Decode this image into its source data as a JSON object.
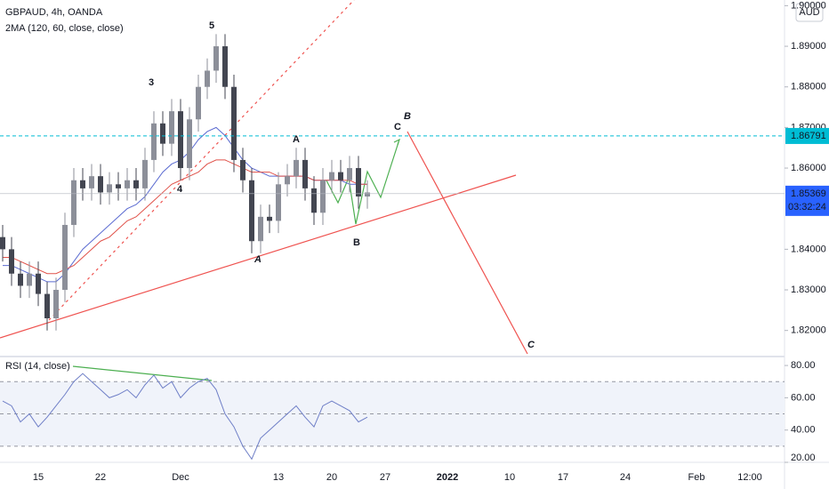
{
  "chart_data": {
    "type": "candlestick",
    "title": "GBPAUD, 4h, OANDA",
    "indicator": "2MA (120, 60, close, close)",
    "rsi_title": "RSI (14, close)",
    "currency": "AUD",
    "countdown": "03:32:24",
    "categories": [
      null,
      null,
      null,
      null,
      "15",
      null,
      null,
      null,
      null,
      null,
      null,
      "22",
      null,
      null,
      null,
      null,
      null,
      null,
      null,
      null,
      "Dec",
      null,
      null,
      null,
      null,
      null,
      null,
      null,
      null,
      null,
      null,
      "13",
      null,
      null,
      null,
      null,
      null,
      "20",
      null,
      null,
      null,
      null,
      null,
      "27",
      null,
      null,
      null,
      null,
      null,
      null,
      "2022",
      null,
      null,
      null,
      null,
      null,
      null,
      "10",
      null,
      null,
      null,
      null,
      null,
      "17",
      null,
      null,
      null,
      null,
      null,
      null,
      "24",
      null,
      null,
      null,
      null,
      null,
      null,
      null,
      "Feb",
      null,
      null,
      null,
      null,
      null,
      "12:00",
      null,
      null,
      null
    ],
    "open": [
      1.843,
      1.84,
      1.834,
      1.831,
      1.834,
      1.829,
      1.823,
      1.83,
      1.846,
      1.857,
      1.855,
      1.858,
      1.854,
      1.856,
      1.855,
      1.857,
      1.855,
      1.862,
      1.871,
      1.866,
      1.874,
      1.86,
      1.872,
      1.88,
      1.884,
      1.89,
      1.88,
      1.862,
      1.857,
      1.842,
      1.848,
      1.847,
      1.856,
      1.858,
      1.862,
      1.855,
      1.849,
      1.857,
      1.859,
      1.857,
      1.86,
      1.853,
      null,
      null,
      null,
      null,
      null,
      null,
      null,
      null,
      null,
      null,
      null,
      null,
      null,
      null,
      null,
      null,
      null,
      null,
      null,
      null,
      null,
      null,
      null,
      null,
      null,
      null,
      null,
      null,
      null,
      null,
      null,
      null,
      null,
      null,
      null,
      null,
      null,
      null,
      null,
      null,
      null,
      null,
      null,
      null,
      null,
      null
    ],
    "high": [
      1.846,
      1.843,
      1.837,
      1.837,
      1.837,
      1.832,
      1.833,
      1.849,
      1.86,
      1.86,
      1.861,
      1.861,
      1.859,
      1.859,
      1.86,
      1.86,
      1.865,
      1.874,
      1.874,
      1.877,
      1.877,
      1.875,
      1.883,
      1.887,
      1.893,
      1.893,
      1.883,
      1.865,
      1.86,
      1.851,
      1.851,
      1.859,
      1.861,
      1.865,
      1.865,
      1.858,
      1.86,
      1.862,
      1.862,
      1.863,
      1.863,
      1.857,
      null,
      null,
      null,
      null,
      null,
      null,
      null,
      null,
      null,
      null,
      null,
      null,
      null,
      null,
      null,
      null,
      null,
      null,
      null,
      null,
      null,
      null,
      null,
      null,
      null,
      null,
      null,
      null,
      null,
      null,
      null,
      null,
      null,
      null,
      null,
      null,
      null,
      null,
      null,
      null,
      null,
      null,
      null,
      null,
      null,
      null
    ],
    "low": [
      1.837,
      1.831,
      1.828,
      1.828,
      1.826,
      1.82,
      1.82,
      1.827,
      1.843,
      1.852,
      1.852,
      1.851,
      1.851,
      1.852,
      1.852,
      1.852,
      1.852,
      1.859,
      1.863,
      1.863,
      1.857,
      1.857,
      1.869,
      1.877,
      1.881,
      1.877,
      1.859,
      1.854,
      1.839,
      1.839,
      1.844,
      1.844,
      1.853,
      1.855,
      1.852,
      1.846,
      1.846,
      1.854,
      1.854,
      1.854,
      1.85,
      1.85,
      null,
      null,
      null,
      null,
      null,
      null,
      null,
      null,
      null,
      null,
      null,
      null,
      null,
      null,
      null,
      null,
      null,
      null,
      null,
      null,
      null,
      null,
      null,
      null,
      null,
      null,
      null,
      null,
      null,
      null,
      null,
      null,
      null,
      null,
      null,
      null,
      null,
      null,
      null,
      null,
      null,
      null,
      null,
      null,
      null,
      null
    ],
    "close": [
      1.84,
      1.834,
      1.831,
      1.834,
      1.829,
      1.823,
      1.83,
      1.846,
      1.857,
      1.855,
      1.858,
      1.854,
      1.856,
      1.855,
      1.857,
      1.855,
      1.862,
      1.871,
      1.866,
      1.874,
      1.86,
      1.872,
      1.88,
      1.884,
      1.89,
      1.88,
      1.862,
      1.857,
      1.842,
      1.848,
      1.847,
      1.856,
      1.858,
      1.862,
      1.855,
      1.849,
      1.857,
      1.859,
      1.857,
      1.86,
      1.853,
      1.854,
      null,
      null,
      null,
      null,
      null,
      null,
      null,
      null,
      null,
      null,
      null,
      null,
      null,
      null,
      null,
      null,
      null,
      null,
      null,
      null,
      null,
      null,
      null,
      null,
      null,
      null,
      null,
      null,
      null,
      null,
      null,
      null,
      null,
      null,
      null,
      null,
      null,
      null,
      null,
      null,
      null,
      null,
      null,
      null,
      null,
      null
    ],
    "up_color": "#8c8f99",
    "down_color": "#434651",
    "series": [
      {
        "color": "#5b6bd1",
        "values": [
          1.836,
          1.836,
          1.835,
          1.834,
          1.833,
          1.832,
          1.832,
          1.834,
          1.837,
          1.84,
          1.842,
          1.844,
          1.846,
          1.848,
          1.85,
          1.851,
          1.853,
          1.856,
          1.859,
          1.861,
          1.862,
          1.864,
          1.867,
          1.869,
          1.87,
          1.868,
          1.865,
          1.862,
          1.86,
          1.859,
          1.858,
          1.858,
          1.858,
          1.858,
          1.858,
          1.857,
          1.857,
          1.857,
          1.857,
          1.856,
          1.856,
          1.856,
          null,
          null,
          null,
          null,
          null,
          null,
          null,
          null,
          null,
          null,
          null,
          null,
          null,
          null,
          null,
          null,
          null,
          null,
          null,
          null,
          null,
          null,
          null,
          null,
          null,
          null,
          null,
          null,
          null,
          null,
          null,
          null,
          null,
          null,
          null,
          null,
          null,
          null,
          null,
          null,
          null,
          null,
          null,
          null,
          null,
          null
        ]
      },
      {
        "color": "#e0524a",
        "values": [
          1.838,
          1.838,
          1.837,
          1.836,
          1.835,
          1.834,
          1.834,
          1.835,
          1.836,
          1.838,
          1.84,
          1.842,
          1.843,
          1.845,
          1.847,
          1.848,
          1.85,
          1.852,
          1.854,
          1.856,
          1.857,
          1.858,
          1.859,
          1.861,
          1.862,
          1.862,
          1.861,
          1.86,
          1.859,
          1.859,
          1.859,
          1.858,
          1.858,
          1.858,
          1.858,
          1.857,
          1.857,
          1.857,
          1.857,
          1.857,
          1.856,
          1.856,
          null,
          null,
          null,
          null,
          null,
          null,
          null,
          null,
          null,
          null,
          null,
          null,
          null,
          null,
          null,
          null,
          null,
          null,
          null,
          null,
          null,
          null,
          null,
          null,
          null,
          null,
          null,
          null,
          null,
          null,
          null,
          null,
          null,
          null,
          null,
          null,
          null,
          null,
          null,
          null,
          null,
          null,
          null,
          null,
          null,
          null
        ]
      }
    ],
    "rsi": {
      "color": "#6f7fc7",
      "values": [
        58,
        55,
        45,
        50,
        42,
        48,
        55,
        62,
        70,
        75,
        70,
        65,
        60,
        62,
        65,
        60,
        68,
        74,
        66,
        70,
        60,
        66,
        70,
        72,
        65,
        50,
        42,
        30,
        22,
        35,
        40,
        45,
        50,
        55,
        48,
        42,
        55,
        58,
        55,
        52,
        45,
        48,
        null,
        null,
        null,
        null,
        null,
        null,
        null,
        null,
        null,
        null,
        null,
        null,
        null,
        null,
        null,
        null,
        null,
        null,
        null,
        null,
        null,
        null,
        null,
        null,
        null,
        null,
        null,
        null,
        null,
        null,
        null,
        null,
        null,
        null,
        null,
        null,
        null,
        null,
        null,
        null,
        null,
        null,
        null,
        null,
        null,
        null
      ],
      "ylim": [
        20,
        85
      ],
      "yticks": [
        {
          "value": 20,
          "label": "20.00"
        },
        {
          "value": 40,
          "label": "40.00"
        },
        {
          "value": 60,
          "label": "60.00"
        },
        {
          "value": 80,
          "label": "80.00"
        }
      ],
      "levels": [
        30,
        50,
        70
      ]
    },
    "ylim": [
      1.8138,
      1.9014
    ],
    "yticks": [
      {
        "value": 1.82,
        "label": "1.82000"
      },
      {
        "value": 1.83,
        "label": "1.83000"
      },
      {
        "value": 1.84,
        "label": "1.84000"
      },
      {
        "value": 1.86,
        "label": "1.86000"
      },
      {
        "value": 1.87,
        "label": "1.87000"
      },
      {
        "value": 1.88,
        "label": "1.88000"
      },
      {
        "value": 1.89,
        "label": "1.89000"
      },
      {
        "value": 1.9,
        "label": "1.90000"
      }
    ],
    "target_line": 1.86791,
    "last_price": 1.85369,
    "annotations": [
      "5",
      "3",
      "4",
      "A",
      "B",
      "C",
      "A",
      "B",
      "C"
    ]
  }
}
